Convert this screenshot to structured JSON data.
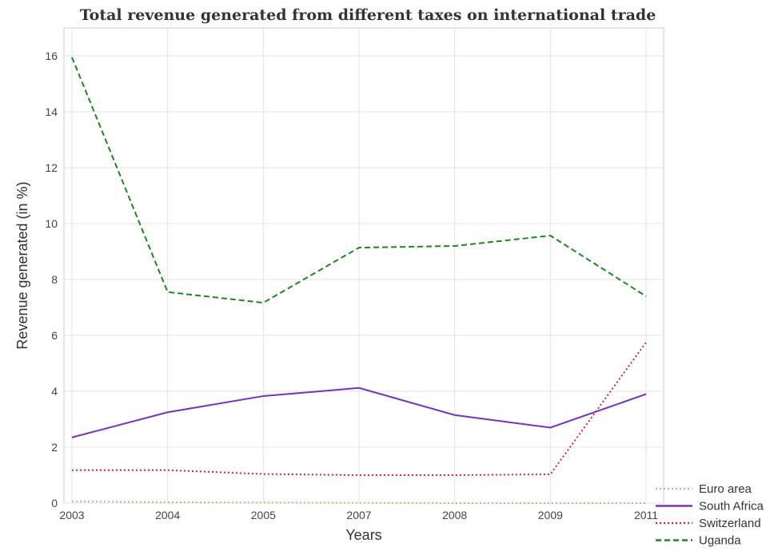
{
  "chart_data": {
    "type": "line",
    "title": "Total revenue generated from different taxes on international trade",
    "xlabel": "Years",
    "ylabel": "Revenue generated (in %)",
    "categories": [
      "2003",
      "2004",
      "2005",
      "2007",
      "2008",
      "2009",
      "2011"
    ],
    "ylim": [
      0,
      17
    ],
    "yticks": [
      0,
      2,
      4,
      6,
      8,
      10,
      12,
      14,
      16
    ],
    "grid": true,
    "legend_position": "bottom-right",
    "series": [
      {
        "name": "Euro area",
        "color": "#9acd8a",
        "dash": "dot",
        "values": [
          0.06,
          0.03,
          0.02,
          0.01,
          0.0,
          0.0,
          0.0
        ]
      },
      {
        "name": "South Africa",
        "color": "#7b2fbf",
        "dash": "solid",
        "values": [
          2.35,
          3.25,
          3.83,
          4.12,
          3.15,
          2.7,
          3.9
        ]
      },
      {
        "name": "Switzerland",
        "color": "#d62728",
        "dash": "dot",
        "values": [
          1.18,
          1.18,
          1.04,
          1.0,
          1.0,
          1.03,
          5.75
        ]
      },
      {
        "name": "Uganda",
        "color": "#1a8a1a",
        "dash": "dash",
        "values": [
          15.95,
          7.55,
          7.17,
          9.14,
          9.2,
          9.57,
          7.4
        ]
      }
    ]
  }
}
